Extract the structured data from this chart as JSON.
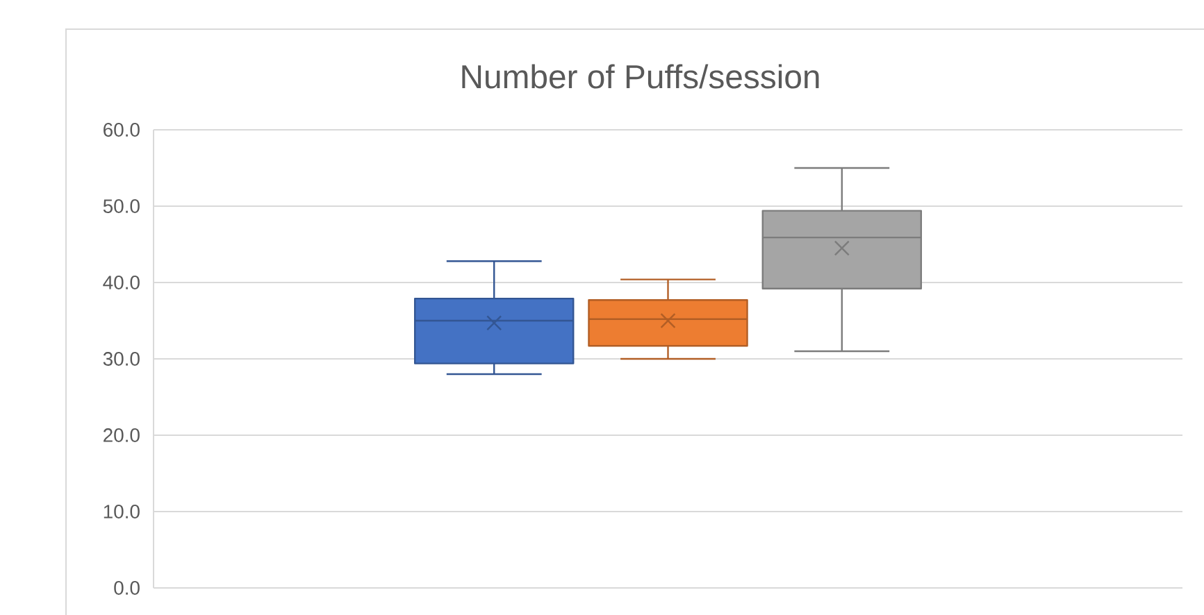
{
  "chart_data": {
    "type": "box",
    "title": "Number of Puffs/session",
    "categories": [
      null
    ],
    "series": [
      {
        "color": "#4472c4",
        "boxes": [
          {
            "low": 28.0,
            "q1": 29.4,
            "median": 35.0,
            "q3": 37.9,
            "high": 42.8,
            "mean": 34.7
          }
        ]
      },
      {
        "color": "#ed7d31",
        "boxes": [
          {
            "low": 30.0,
            "q1": 31.7,
            "median": 35.2,
            "q3": 37.7,
            "high": 40.4,
            "mean": 35.0
          }
        ]
      },
      {
        "color": "#a5a5a5",
        "boxes": [
          {
            "low": 31.0,
            "q1": 39.2,
            "median": 45.9,
            "q3": 49.4,
            "high": 55.0,
            "mean": 44.5
          }
        ]
      }
    ],
    "ylim": [
      0,
      60
    ],
    "yticks": [
      {
        "value": 0,
        "label": "0.0"
      },
      {
        "value": 10,
        "label": "10.0"
      },
      {
        "value": 20,
        "label": "20.0"
      },
      {
        "value": 30,
        "label": "30.0"
      },
      {
        "value": 40,
        "label": "40.0"
      },
      {
        "value": 50,
        "label": "50.0"
      },
      {
        "value": 60,
        "label": "60.0"
      }
    ],
    "grid": "y"
  }
}
